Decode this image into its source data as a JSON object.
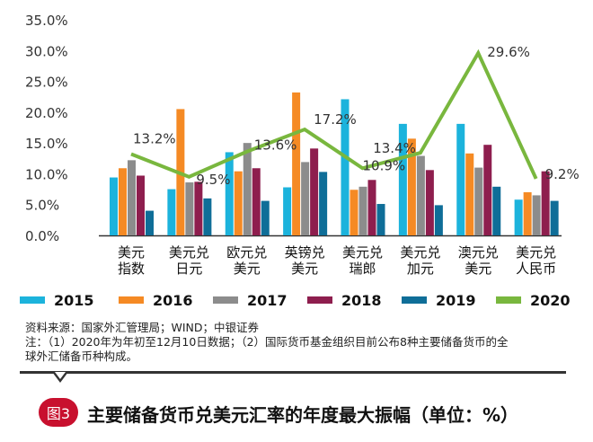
{
  "figure": {
    "badge": "图3",
    "title": "主要储备货币兑美元汇率的年度最大振幅（单位：%）"
  },
  "notes": {
    "source": "资料来源：国家外汇管理局；WIND；中银证券",
    "note_line1": "注：（1）2020年为年初至12月10日数据；（2）国际货币基金组织目前公布8种主要储备货币的全",
    "note_line2": "球外汇储备币种构成。"
  },
  "colors": {
    "2015": "#1cb3dc",
    "2016": "#f58a24",
    "2017": "#8c8c8c",
    "2018": "#8e1e4e",
    "2019": "#0f6e98",
    "2020": "#79b73e"
  },
  "chart_data": {
    "type": "bar",
    "categories": [
      [
        "美元",
        "指数"
      ],
      [
        "美元兑",
        "日元"
      ],
      [
        "欧元兑",
        "美元"
      ],
      [
        "英镑兑",
        "美元"
      ],
      [
        "美元兑",
        "瑞郎"
      ],
      [
        "美元兑",
        "加元"
      ],
      [
        "澳元兑",
        "美元"
      ],
      [
        "美元兑",
        "人民币"
      ]
    ],
    "ylim": [
      0,
      35
    ],
    "yticks": [
      "0.0%",
      "5.0%",
      "10.0%",
      "15.0%",
      "20.0%",
      "25.0%",
      "30.0%",
      "35.0%"
    ],
    "grid": false,
    "legend_position": "bottom",
    "series": [
      {
        "name": "2015",
        "kind": "bar",
        "values": [
          9.4,
          7.5,
          13.5,
          7.8,
          22.1,
          18.1,
          18.1,
          5.8
        ]
      },
      {
        "name": "2016",
        "kind": "bar",
        "values": [
          10.9,
          20.5,
          10.4,
          23.2,
          7.4,
          15.7,
          13.3,
          7.0
        ]
      },
      {
        "name": "2017",
        "kind": "bar",
        "values": [
          12.2,
          8.6,
          15.0,
          11.9,
          7.9,
          12.9,
          11.0,
          6.5
        ]
      },
      {
        "name": "2018",
        "kind": "bar",
        "values": [
          9.7,
          8.7,
          10.9,
          14.1,
          9.0,
          10.6,
          14.7,
          10.4
        ]
      },
      {
        "name": "2019",
        "kind": "bar",
        "values": [
          4.0,
          6.0,
          5.6,
          10.3,
          5.1,
          4.9,
          7.9,
          5.6
        ]
      },
      {
        "name": "2020",
        "kind": "line",
        "values": [
          13.2,
          9.5,
          13.6,
          17.2,
          10.9,
          13.4,
          29.6,
          9.2
        ],
        "labels": [
          "13.2%",
          "9.5%",
          "13.6%",
          "17.2%",
          "10.9%",
          "13.4%",
          "29.6%",
          "9.2%"
        ]
      }
    ]
  }
}
